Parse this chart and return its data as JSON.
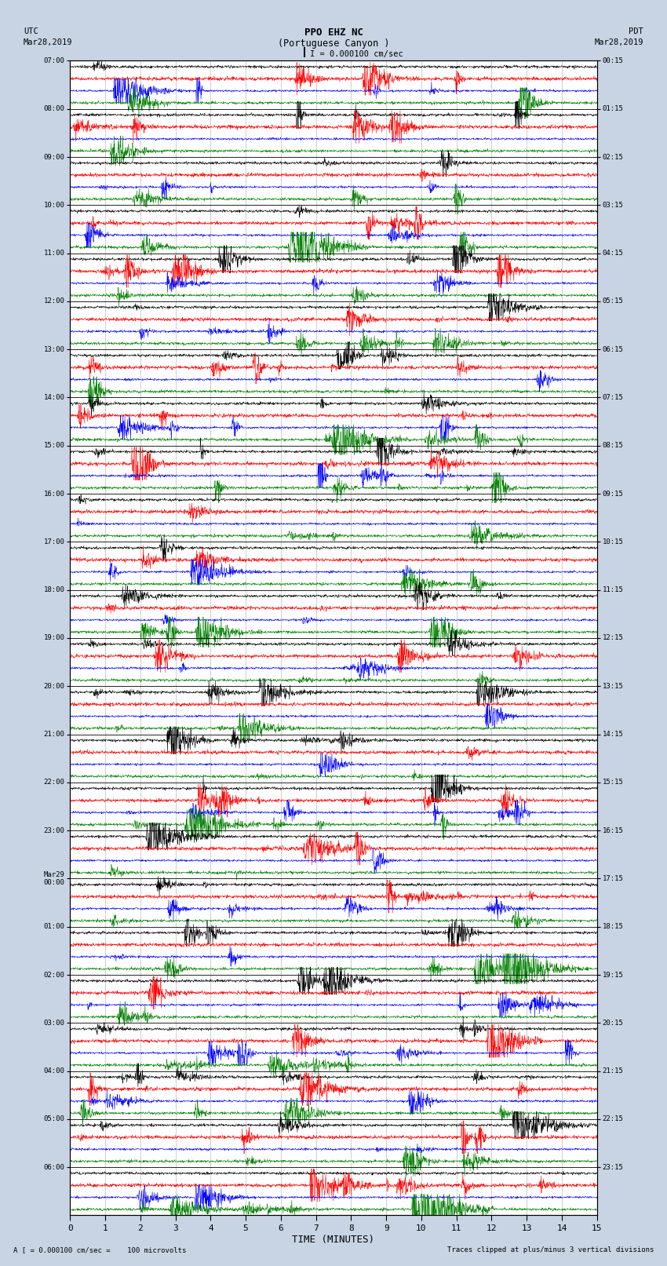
{
  "title_line1": "PPO EHZ NC",
  "title_line2": "(Portuguese Canyon )",
  "title_line3": "I = 0.000100 cm/sec",
  "left_label_line1": "UTC",
  "left_label_line2": "Mar28,2019",
  "right_label_line1": "PDT",
  "right_label_line2": "Mar28,2019",
  "bottom_label_left": "A [ = 0.000100 cm/sec =    100 microvolts",
  "bottom_label_right": "Traces clipped at plus/minus 3 vertical divisions",
  "xlabel": "TIME (MINUTES)",
  "xmin": 0,
  "xmax": 15,
  "xticks": [
    0,
    1,
    2,
    3,
    4,
    5,
    6,
    7,
    8,
    9,
    10,
    11,
    12,
    13,
    14,
    15
  ],
  "utc_labels": [
    "07:00",
    "08:00",
    "09:00",
    "10:00",
    "11:00",
    "12:00",
    "13:00",
    "14:00",
    "15:00",
    "16:00",
    "17:00",
    "18:00",
    "19:00",
    "20:00",
    "21:00",
    "22:00",
    "23:00",
    "Mar29\n00:00",
    "01:00",
    "02:00",
    "03:00",
    "04:00",
    "05:00",
    "06:00"
  ],
  "pdt_labels": [
    "00:15",
    "01:15",
    "02:15",
    "03:15",
    "04:15",
    "05:15",
    "06:15",
    "07:15",
    "08:15",
    "09:15",
    "10:15",
    "11:15",
    "12:15",
    "13:15",
    "14:15",
    "15:15",
    "16:15",
    "17:15",
    "18:15",
    "19:15",
    "20:15",
    "21:15",
    "22:15",
    "23:15"
  ],
  "num_hours": 24,
  "traces_per_hour": 4,
  "colors": [
    "black",
    "red",
    "blue",
    "green"
  ],
  "bg_color": "#c8d4e4",
  "plot_bg": "white",
  "amplitude": 0.38,
  "noise": 0.055,
  "seed": 42
}
